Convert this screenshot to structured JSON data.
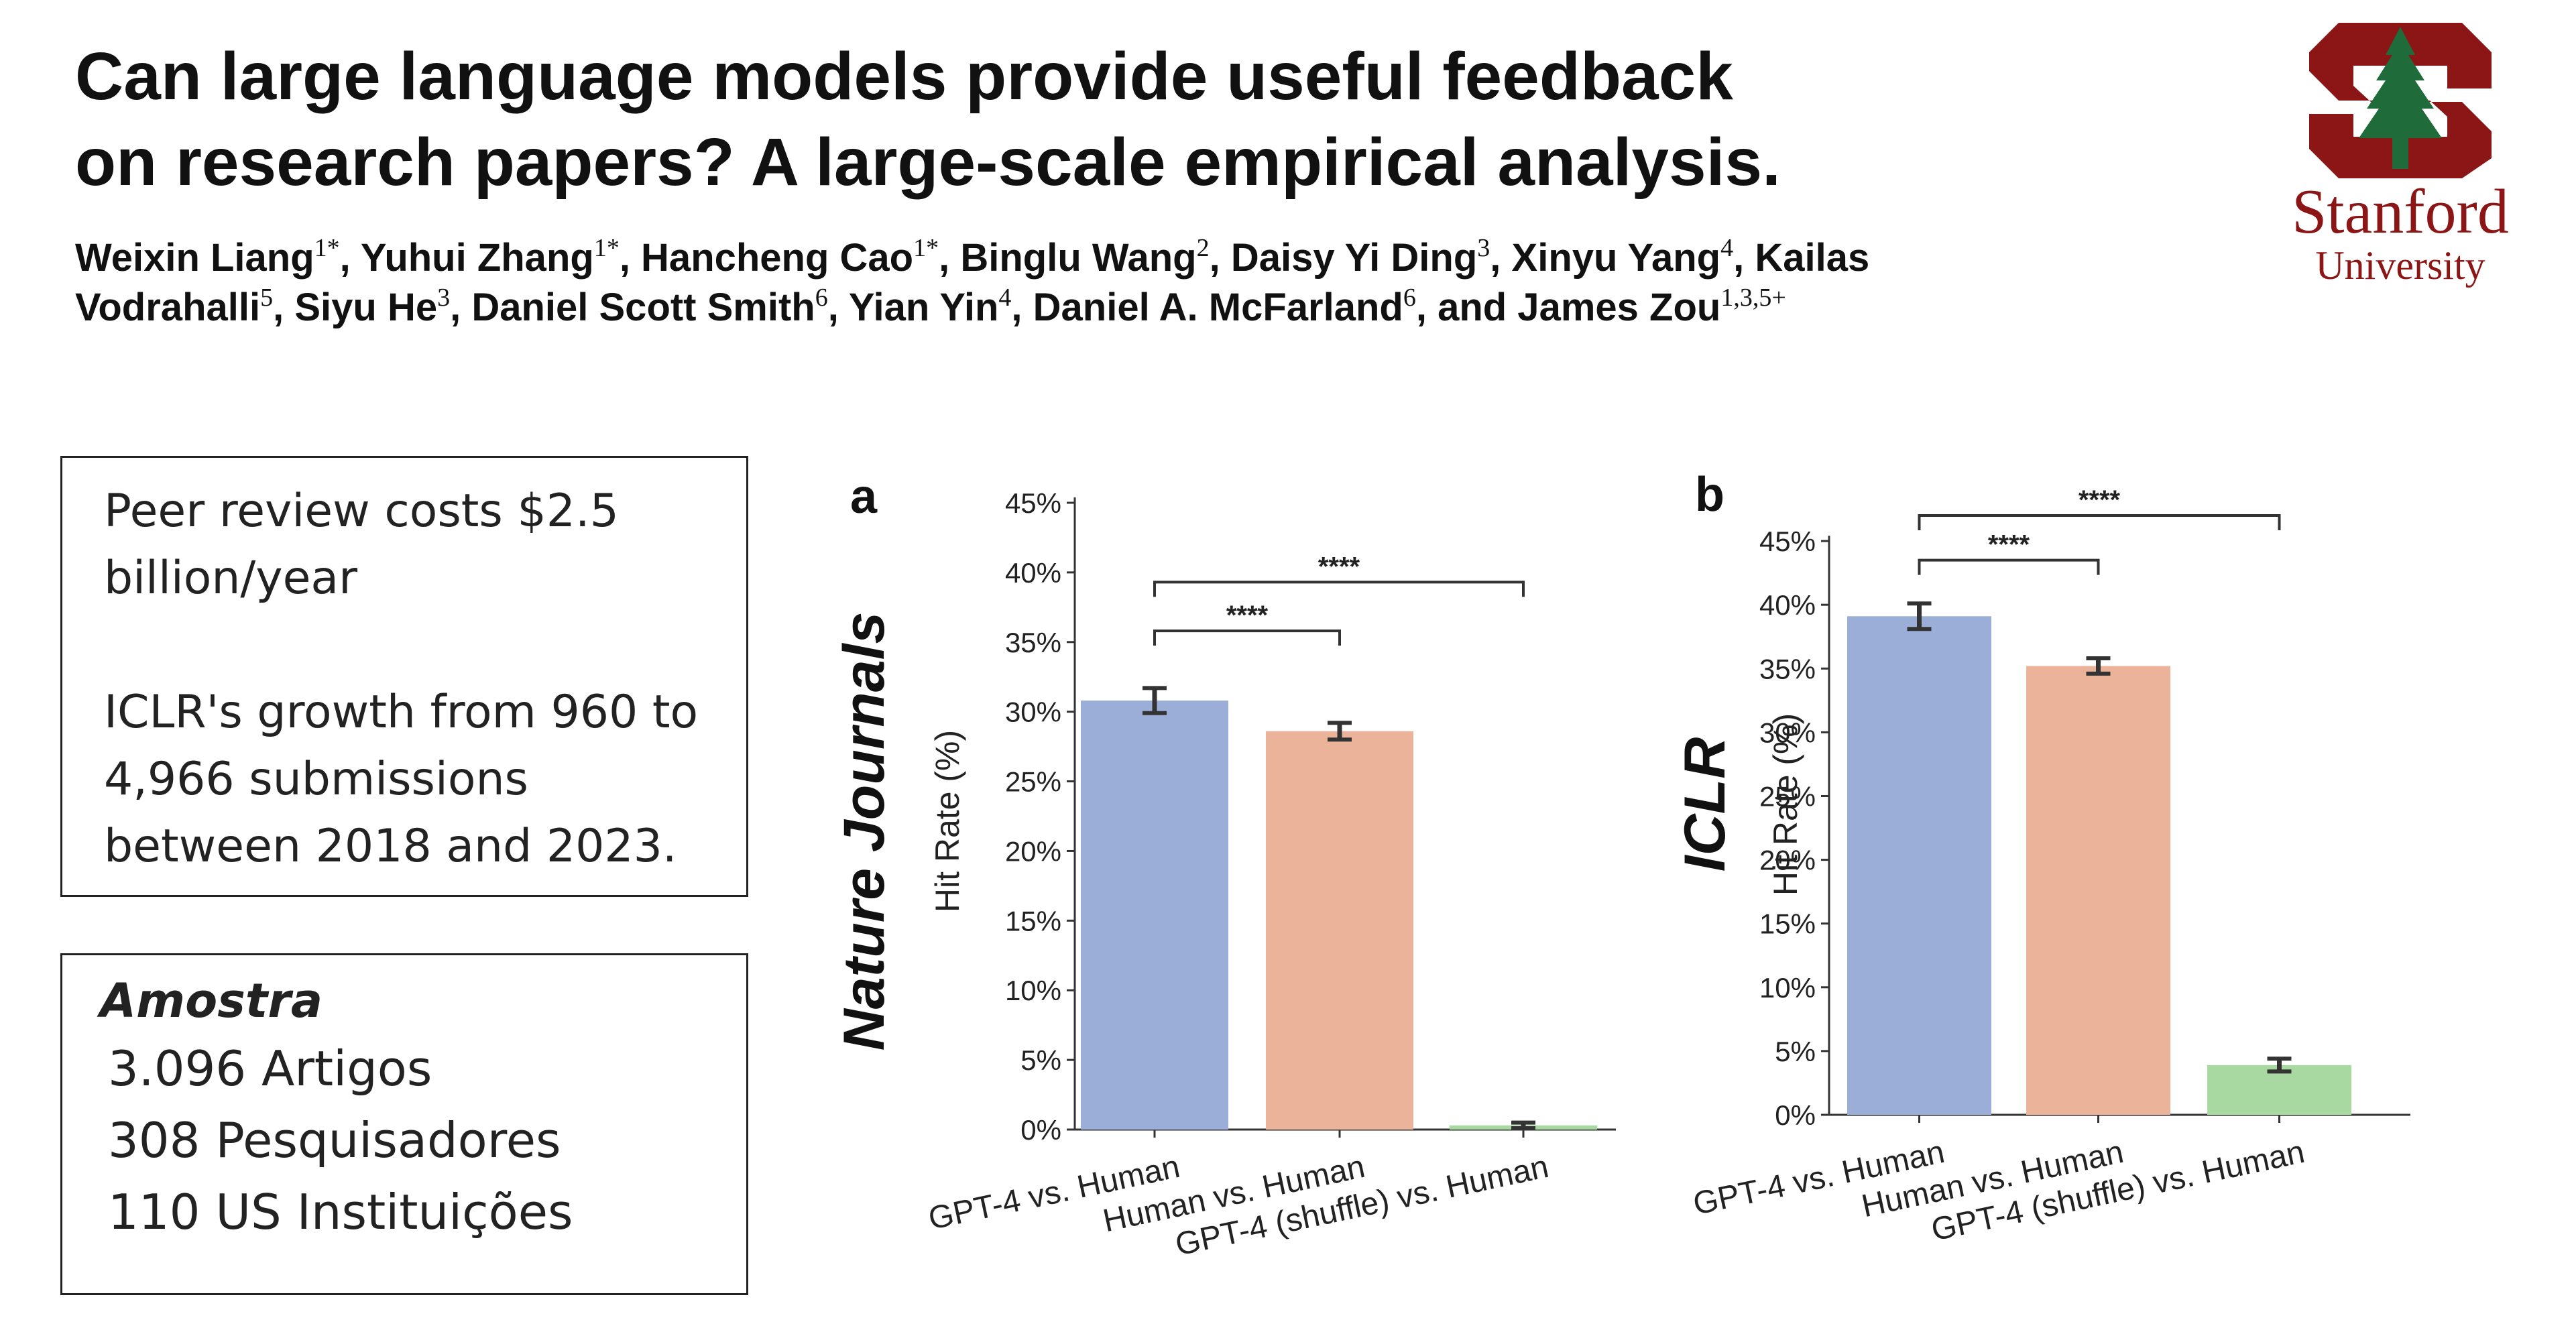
{
  "header": {
    "title_line1": "Can large language models provide useful feedback",
    "title_line2": "on research papers? A large-scale empirical analysis.",
    "authors": [
      {
        "name": "Weixin Liang",
        "sup": "1*"
      },
      {
        "name": "Yuhui Zhang",
        "sup": "1*"
      },
      {
        "name": "Hancheng Cao",
        "sup": "1*"
      },
      {
        "name": "Binglu Wang",
        "sup": "2"
      },
      {
        "name": "Daisy Yi Ding",
        "sup": "3"
      },
      {
        "name": "Xinyu Yang",
        "sup": "4"
      },
      {
        "name": "Kailas Vodrahalli",
        "sup": "5"
      },
      {
        "name": "Siyu He",
        "sup": "3"
      },
      {
        "name": "Daniel Scott Smith",
        "sup": "6"
      },
      {
        "name": "Yian Yin",
        "sup": "4"
      },
      {
        "name": "Daniel A. McFarland",
        "sup": "6"
      },
      {
        "name": "and James Zou",
        "sup": "1,3,5+"
      }
    ]
  },
  "logo": {
    "name": "Stanford",
    "subname": "University",
    "color": "#8c1515",
    "tree_color": "#1f6b3a"
  },
  "info_box": {
    "line1": "Peer review costs $2.5 billion/year",
    "line2": "ICLR's growth from 960 to 4,966 submissions between 2018 and 2023."
  },
  "sample_box": {
    "title": "Amostra",
    "items": [
      "3.096 Artigos",
      "308 Pesquisadores",
      "110 US Instituições"
    ]
  },
  "chart_data": [
    {
      "type": "bar",
      "panel": "a",
      "row_label": "Nature Journals",
      "ylabel": "Hit Rate (%)",
      "ylim": [
        0,
        45
      ],
      "yticks": [
        0,
        5,
        10,
        15,
        20,
        25,
        30,
        35,
        40,
        45
      ],
      "tick_suffix": "%",
      "categories": [
        "GPT-4 vs. Human",
        "Human vs. Human",
        "GPT-4 (shuffle) vs. Human"
      ],
      "values": [
        30.8,
        28.6,
        0.3
      ],
      "errors": [
        0.9,
        0.6,
        0.2
      ],
      "colors": [
        "#9aaed8",
        "#eab39a",
        "#a8d9a0"
      ],
      "significance": [
        {
          "from": 0,
          "to": 1,
          "label": "****",
          "y": 35.8
        },
        {
          "from": 0,
          "to": 2,
          "label": "****",
          "y": 39.3
        }
      ]
    },
    {
      "type": "bar",
      "panel": "b",
      "row_label": "ICLR",
      "ylabel": "Hit Rate (%)",
      "ylim": [
        0,
        48
      ],
      "yticks": [
        0,
        5,
        10,
        15,
        20,
        25,
        30,
        35,
        40,
        45
      ],
      "tick_suffix": "%",
      "categories": [
        "GPT-4 vs. Human",
        "Human vs. Human",
        "GPT-4 (shuffle) vs. Human"
      ],
      "values": [
        39.1,
        35.2,
        3.9
      ],
      "errors": [
        1.0,
        0.6,
        0.5
      ],
      "colors": [
        "#9aaed8",
        "#eab39a",
        "#a8d9a0"
      ],
      "significance": [
        {
          "from": 0,
          "to": 1,
          "label": "****",
          "y": 43.5
        },
        {
          "from": 0,
          "to": 2,
          "label": "****",
          "y": 47.0
        }
      ]
    }
  ]
}
